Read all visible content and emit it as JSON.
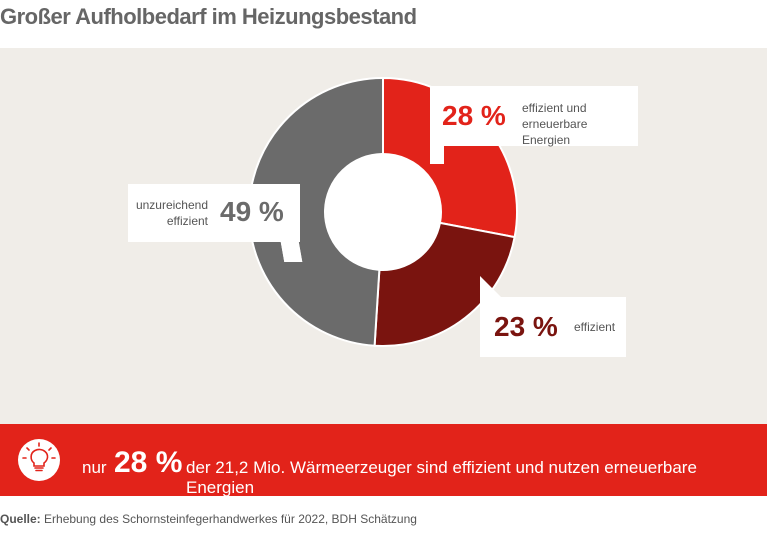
{
  "title": "Großer Aufholbedarf im Heizungsbestand",
  "chart_data": {
    "type": "pie",
    "subtype": "donut",
    "slices": [
      {
        "value": 28,
        "pct_label": "28 %",
        "label_lines": [
          "effizient und",
          "erneuerbare Energien"
        ],
        "color": "#e2231a"
      },
      {
        "value": 23,
        "pct_label": "23 %",
        "label_lines": [
          "effizient"
        ],
        "color": "#7a140f"
      },
      {
        "value": 49,
        "pct_label": "49 %",
        "label_lines": [
          "unzureichend",
          "effizient"
        ],
        "color": "#6b6b6b"
      }
    ]
  },
  "banner": {
    "prefix": "nur",
    "highlight": "28 %",
    "text": "der 21,2 Mio. Wärmeerzeuger sind effizient und nutzen erneuerbare Energien",
    "icon": "lightbulb-icon"
  },
  "source": {
    "label": "Quelle:",
    "text": "Erhebung des Schornsteinfegerhandwerkes für 2022, BDH Schätzung"
  },
  "colors": {
    "accent": "#e2231a",
    "dark_red": "#7a140f",
    "gray": "#6b6b6b",
    "panel": "#f0ede8"
  }
}
